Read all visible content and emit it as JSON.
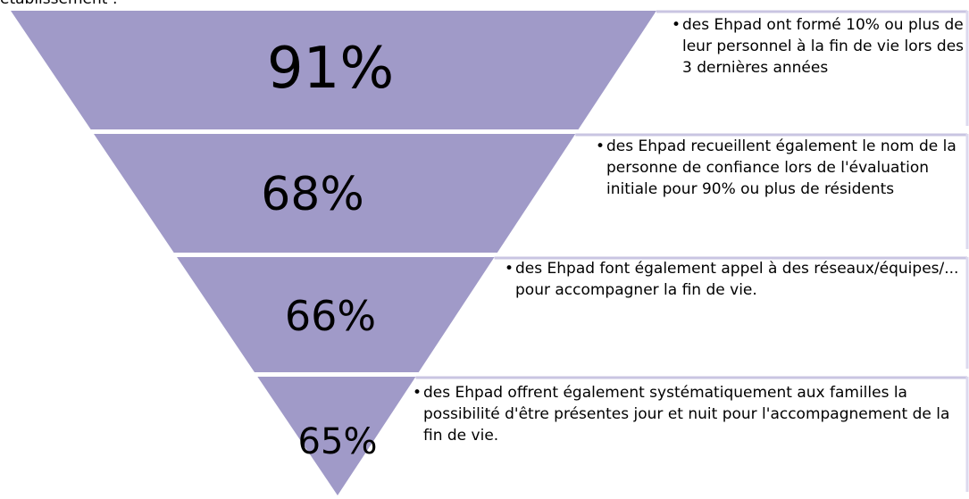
{
  "header": {
    "text": "établissement :"
  },
  "levels": [
    {
      "value": "91%",
      "description": "des Ehpad ont formé 10% ou plus de leur personnel à la fin de vie lors des 3 dernières années"
    },
    {
      "value": "68%",
      "description": "des Ehpad recueillent également le nom de la personne de confiance lors de l'évaluation initiale pour 90% ou plus de résidents"
    },
    {
      "value": "66%",
      "description": "des Ehpad font également appel à des réseaux/équipes/... pour accompagner la fin de vie."
    },
    {
      "value": "65%",
      "description": "des Ehpad offrent également systématiquement aux familles la possibilité d'être présentes jour et nuit pour l'accompagnement de la fin de vie."
    }
  ]
}
